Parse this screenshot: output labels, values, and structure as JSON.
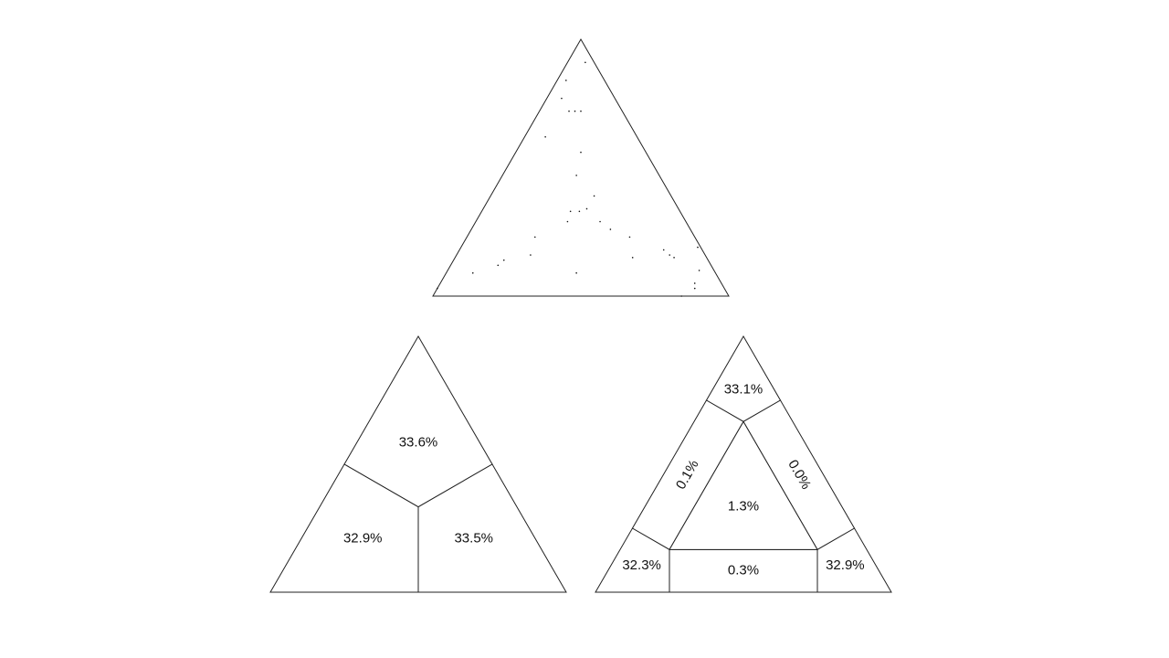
{
  "chart_data": [
    {
      "type": "ternary-scatter",
      "a": [
        0.91,
        0.84,
        0.77,
        0.72,
        0.72,
        0.72,
        0.62,
        0.56,
        0.47,
        0.39,
        0.33,
        0.34,
        0.33,
        0.29,
        0.29,
        0.26,
        0.23,
        0.23,
        0.19,
        0.18,
        0.16,
        0.15,
        0.16,
        0.15,
        0.14,
        0.12,
        0.09,
        0.09,
        0.1,
        0.05,
        0.03,
        0.03,
        0.0
      ],
      "b": [
        0.03,
        0.13,
        0.18,
        0.18,
        0.16,
        0.14,
        0.31,
        0.22,
        0.28,
        0.26,
        0.34,
        0.31,
        0.37,
        0.4,
        0.29,
        0.27,
        0.54,
        0.22,
        0.01,
        0.13,
        0.12,
        0.11,
        0.59,
        0.25,
        0.69,
        0.72,
        0.82,
        0.47,
        0.05,
        0.09,
        0.1,
        0.97,
        0.16
      ],
      "c": [
        0.06,
        0.03,
        0.05,
        0.1,
        0.12,
        0.14,
        0.07,
        0.22,
        0.25,
        0.35,
        0.33,
        0.35,
        0.3,
        0.31,
        0.42,
        0.47,
        0.23,
        0.55,
        0.8,
        0.69,
        0.72,
        0.74,
        0.25,
        0.6,
        0.17,
        0.16,
        0.09,
        0.44,
        0.85,
        0.86,
        0.87,
        0.0,
        0.84
      ],
      "color": "#111111"
    },
    {
      "type": "ternary-regions",
      "values": [
        33.6,
        32.9,
        33.5
      ],
      "value_labels": [
        "33.6%",
        "32.9%",
        "33.5%"
      ]
    },
    {
      "type": "ternary-regions",
      "values": [
        33.1,
        32.3,
        32.9,
        0.1,
        0.0,
        0.3,
        1.3
      ],
      "value_labels": [
        "33.1%",
        "32.3%",
        "32.9%",
        "0.1%",
        "0.0%",
        "0.3%",
        "1.3%"
      ]
    }
  ]
}
